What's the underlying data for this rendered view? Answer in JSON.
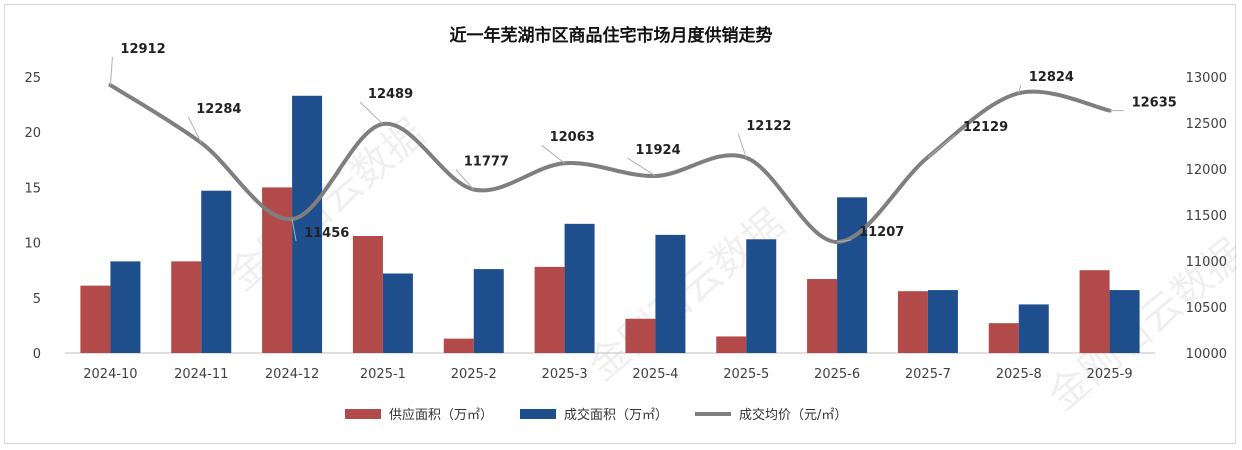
{
  "chart_data": {
    "type": "bar",
    "title": "近一年芜湖市区商品住宅市场月度供销走势",
    "categories": [
      "2024-10",
      "2024-11",
      "2024-12",
      "2025-1",
      "2025-2",
      "2025-3",
      "2025-4",
      "2025-5",
      "2025-6",
      "2025-7",
      "2025-8",
      "2025-9"
    ],
    "series": [
      {
        "name": "供应面积（万㎡）",
        "type": "bar",
        "axis": "left",
        "color": "#b24a4a",
        "values": [
          6.1,
          8.3,
          15.0,
          10.6,
          1.3,
          7.8,
          3.1,
          1.5,
          6.7,
          5.6,
          2.7,
          7.5
        ]
      },
      {
        "name": "成交面积（万㎡）",
        "type": "bar",
        "axis": "left",
        "color": "#1f4e8c",
        "values": [
          8.3,
          14.7,
          23.3,
          7.2,
          7.6,
          11.7,
          10.7,
          10.3,
          14.1,
          5.7,
          4.4,
          5.7
        ]
      },
      {
        "name": "成交均价（元/㎡）",
        "type": "line",
        "axis": "right",
        "color": "#7f7f7f",
        "values": [
          12912,
          12284,
          11456,
          12489,
          11777,
          12063,
          11924,
          12122,
          11207,
          12129,
          12824,
          12635
        ]
      }
    ],
    "y_left": {
      "min": 0,
      "max": 25,
      "ticks": [
        0,
        5,
        10,
        15,
        20,
        25
      ]
    },
    "y_right": {
      "min": 10000,
      "max": 13000,
      "ticks": [
        10000,
        10500,
        11000,
        11500,
        12000,
        12500,
        13000
      ]
    },
    "legend_position": "bottom",
    "grid": false,
    "watermark": "金刚石云数据"
  }
}
